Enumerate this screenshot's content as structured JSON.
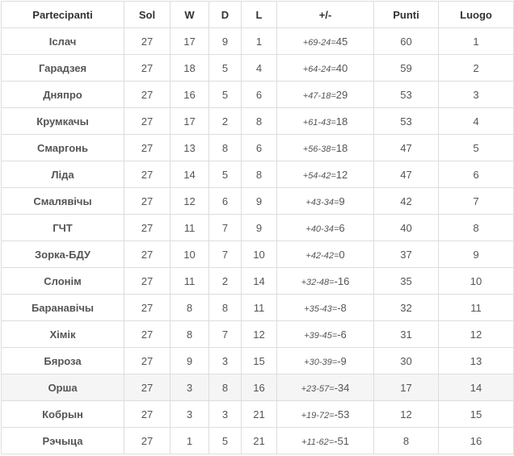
{
  "headers": [
    "Partecipanti",
    "Sol",
    "W",
    "D",
    "L",
    "+/-",
    "Punti",
    "Luogo"
  ],
  "highlight_color": "#f5f5f5",
  "rows": [
    {
      "team": "Іслач",
      "sol": "27",
      "w": "17",
      "d": "9",
      "l": "1",
      "goals": "+69-24=",
      "diff": "45",
      "pts": "60",
      "pos": "1"
    },
    {
      "team": "Гарадзея",
      "sol": "27",
      "w": "18",
      "d": "5",
      "l": "4",
      "goals": "+64-24=",
      "diff": "40",
      "pts": "59",
      "pos": "2"
    },
    {
      "team": "Дняпро",
      "sol": "27",
      "w": "16",
      "d": "5",
      "l": "6",
      "goals": "+47-18=",
      "diff": "29",
      "pts": "53",
      "pos": "3"
    },
    {
      "team": "Крумкачы",
      "sol": "27",
      "w": "17",
      "d": "2",
      "l": "8",
      "goals": "+61-43=",
      "diff": "18",
      "pts": "53",
      "pos": "4"
    },
    {
      "team": "Смаргонь",
      "sol": "27",
      "w": "13",
      "d": "8",
      "l": "6",
      "goals": "+56-38=",
      "diff": "18",
      "pts": "47",
      "pos": "5"
    },
    {
      "team": "Ліда",
      "sol": "27",
      "w": "14",
      "d": "5",
      "l": "8",
      "goals": "+54-42=",
      "diff": "12",
      "pts": "47",
      "pos": "6"
    },
    {
      "team": "Смалявічы",
      "sol": "27",
      "w": "12",
      "d": "6",
      "l": "9",
      "goals": "+43-34=",
      "diff": "9",
      "pts": "42",
      "pos": "7"
    },
    {
      "team": "ГЧТ",
      "sol": "27",
      "w": "11",
      "d": "7",
      "l": "9",
      "goals": "+40-34=",
      "diff": "6",
      "pts": "40",
      "pos": "8"
    },
    {
      "team": "Зорка-БДУ",
      "sol": "27",
      "w": "10",
      "d": "7",
      "l": "10",
      "goals": "+42-42=",
      "diff": "0",
      "pts": "37",
      "pos": "9"
    },
    {
      "team": "Слонім",
      "sol": "27",
      "w": "11",
      "d": "2",
      "l": "14",
      "goals": "+32-48=",
      "diff": "-16",
      "pts": "35",
      "pos": "10"
    },
    {
      "team": "Баранавічы",
      "sol": "27",
      "w": "8",
      "d": "8",
      "l": "11",
      "goals": "+35-43=",
      "diff": "-8",
      "pts": "32",
      "pos": "11"
    },
    {
      "team": "Хімік",
      "sol": "27",
      "w": "8",
      "d": "7",
      "l": "12",
      "goals": "+39-45=",
      "diff": "-6",
      "pts": "31",
      "pos": "12"
    },
    {
      "team": "Бяроза",
      "sol": "27",
      "w": "9",
      "d": "3",
      "l": "15",
      "goals": "+30-39=",
      "diff": "-9",
      "pts": "30",
      "pos": "13"
    },
    {
      "team": "Орша",
      "sol": "27",
      "w": "3",
      "d": "8",
      "l": "16",
      "goals": "+23-57=",
      "diff": "-34",
      "pts": "17",
      "pos": "14",
      "highlighted": true
    },
    {
      "team": "Кобрын",
      "sol": "27",
      "w": "3",
      "d": "3",
      "l": "21",
      "goals": "+19-72=",
      "diff": "-53",
      "pts": "12",
      "pos": "15"
    },
    {
      "team": "Рэчыца",
      "sol": "27",
      "w": "1",
      "d": "5",
      "l": "21",
      "goals": "+11-62=",
      "diff": "-51",
      "pts": "8",
      "pos": "16"
    }
  ]
}
